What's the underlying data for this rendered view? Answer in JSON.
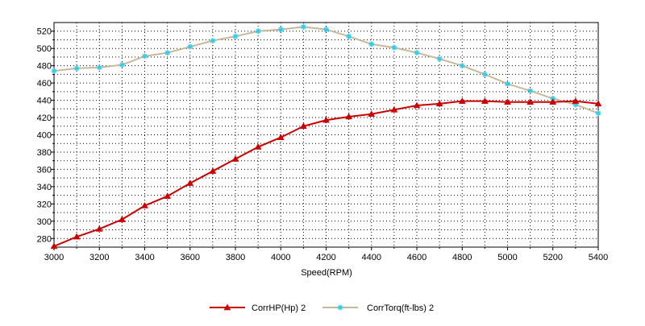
{
  "chart_data": {
    "type": "line",
    "xlabel": "Speed(RPM)",
    "ylabel": "",
    "xlim": [
      3000,
      5400
    ],
    "ylim": [
      270,
      530
    ],
    "x_ticks": [
      3000,
      3200,
      3400,
      3600,
      3800,
      4000,
      4200,
      4400,
      4600,
      4800,
      5000,
      5200,
      5400
    ],
    "y_ticks": [
      280,
      300,
      320,
      340,
      360,
      380,
      400,
      420,
      440,
      460,
      480,
      500,
      520
    ],
    "grid": true,
    "legend": "bottom",
    "x": [
      3000,
      3100,
      3200,
      3300,
      3400,
      3500,
      3600,
      3700,
      3800,
      3900,
      4000,
      4100,
      4200,
      4300,
      4400,
      4500,
      4600,
      4700,
      4800,
      4900,
      5000,
      5100,
      5200,
      5300,
      5400
    ],
    "series": [
      {
        "name": "CorrHP(Hp)  2",
        "marker": "triangle",
        "color": "#cc0000",
        "values": [
          271,
          282,
          291,
          302,
          318,
          329,
          344,
          358,
          372,
          386,
          397,
          410,
          417,
          421,
          424,
          429,
          434,
          436,
          439,
          439,
          438,
          438,
          438,
          439,
          436
        ]
      },
      {
        "name": "CorrTorq(ft-lbs)  2",
        "marker": "star",
        "color": "#c8b89a",
        "marker_color": "#33ccee",
        "values": [
          474,
          477,
          478,
          481,
          491,
          495,
          502,
          509,
          514,
          520,
          522,
          525,
          522,
          514,
          505,
          501,
          495,
          488,
          480,
          470,
          459,
          451,
          442,
          435,
          425
        ]
      }
    ]
  }
}
